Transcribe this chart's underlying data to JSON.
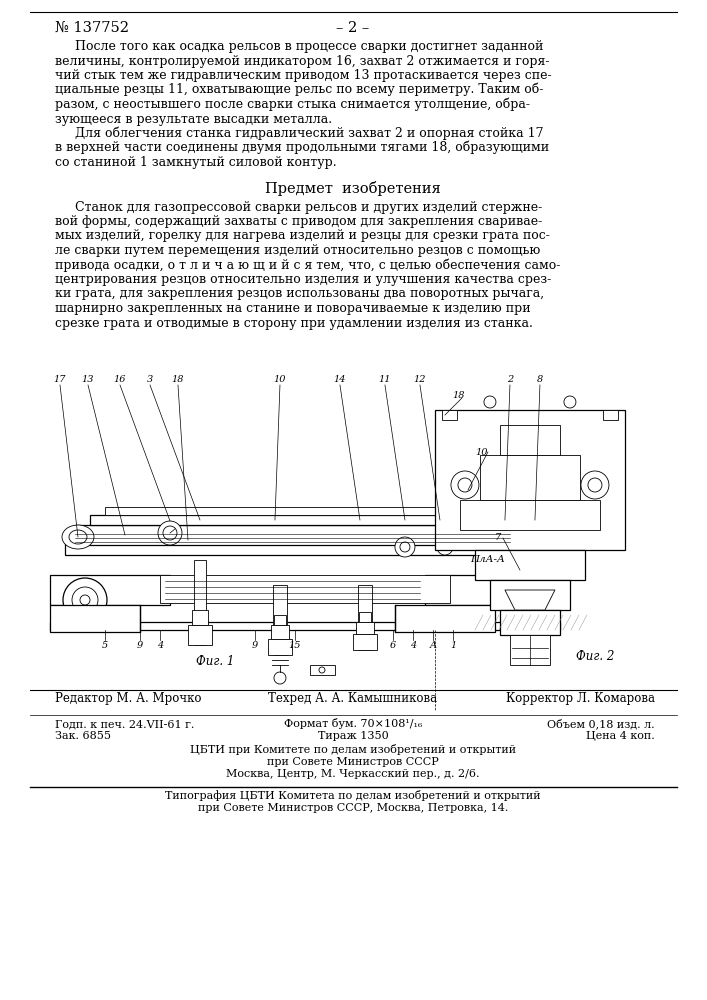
{
  "background_color": "#ffffff",
  "page_number": "№ 137752",
  "page_label": "– 2 –",
  "top_para1": [
    "     После того как осадка рельсов в процессе сварки достигнет заданной",
    "величины, контролируемой индикатором 16, захват 2 отжимается и горя-",
    "чий стык тем же гидравлическим приводом 13 протаскивается через спе-",
    "циальные резцы 11, охватывающие рельс по всему периметру. Таким об-",
    "разом, с неостывшего после сварки стыка снимается утолщение, обра-",
    "зующееся в результате высадки металла."
  ],
  "top_para2": [
    "     Для облегчения станка гидравлический захват 2 и опорная стойка 17",
    "в верхней части соединены двумя продольными тягами 18, образующими",
    "со станиной 1 замкнутый силовой контур."
  ],
  "section_title": "Предмет  изобретения",
  "main_text": [
    "     Станок для газопрессовой сварки рельсов и других изделий стержне-",
    "вой формы, содержащий захваты с приводом для закрепления сваривае-",
    "мых изделий, горелку для нагрева изделий и резцы для срезки грата пос-",
    "ле сварки путем перемещения изделий относительно резцов с помощью",
    "привода осадки, о т л и ч а ю щ и й с я тем, что, с целью обеспечения само-",
    "центрирования резцов относительно изделия и улучшения качества срез-",
    "ки грата, для закрепления резцов использованы два поворотных рычага,",
    "шарнирно закрепленных на станине и поворачиваемые к изделию при",
    "срезке грата и отводимые в сторону при удамлении изделия из станка."
  ],
  "fig1_caption": "Фиг. 1",
  "fig2_caption": "Фиг. 2",
  "pla_label": "ПлА-А",
  "footer_editor": "Редактор М. А. Мрочко",
  "footer_tech": "Техред А. А. Камышникова",
  "footer_corrector": "Корректор Л. Комарова",
  "footer_godp": "Годп. к печ. 24.VII-61 г.",
  "footer_zak": "Зак. 6855",
  "footer_format": "Формат бум. 70×108¹/₁₆",
  "footer_tirazh": "Тираж 1350",
  "footer_obem": "Объем 0,18 изд. л.",
  "footer_cena": "Цена 4 коп.",
  "footer_cbti1": "ЦБТИ при Комитете по делам изобретений и открытий",
  "footer_cbti2": "при Совете Министров СССР",
  "footer_cbti3": "Москва, Центр, М. Черкасский пер., д. 2/6.",
  "footer_typo1": "Типография ЦБТИ Комитета по делам изобретений и открытий",
  "footer_typo2": "при Совете Министров СССР, Москва, Петровка, 14."
}
